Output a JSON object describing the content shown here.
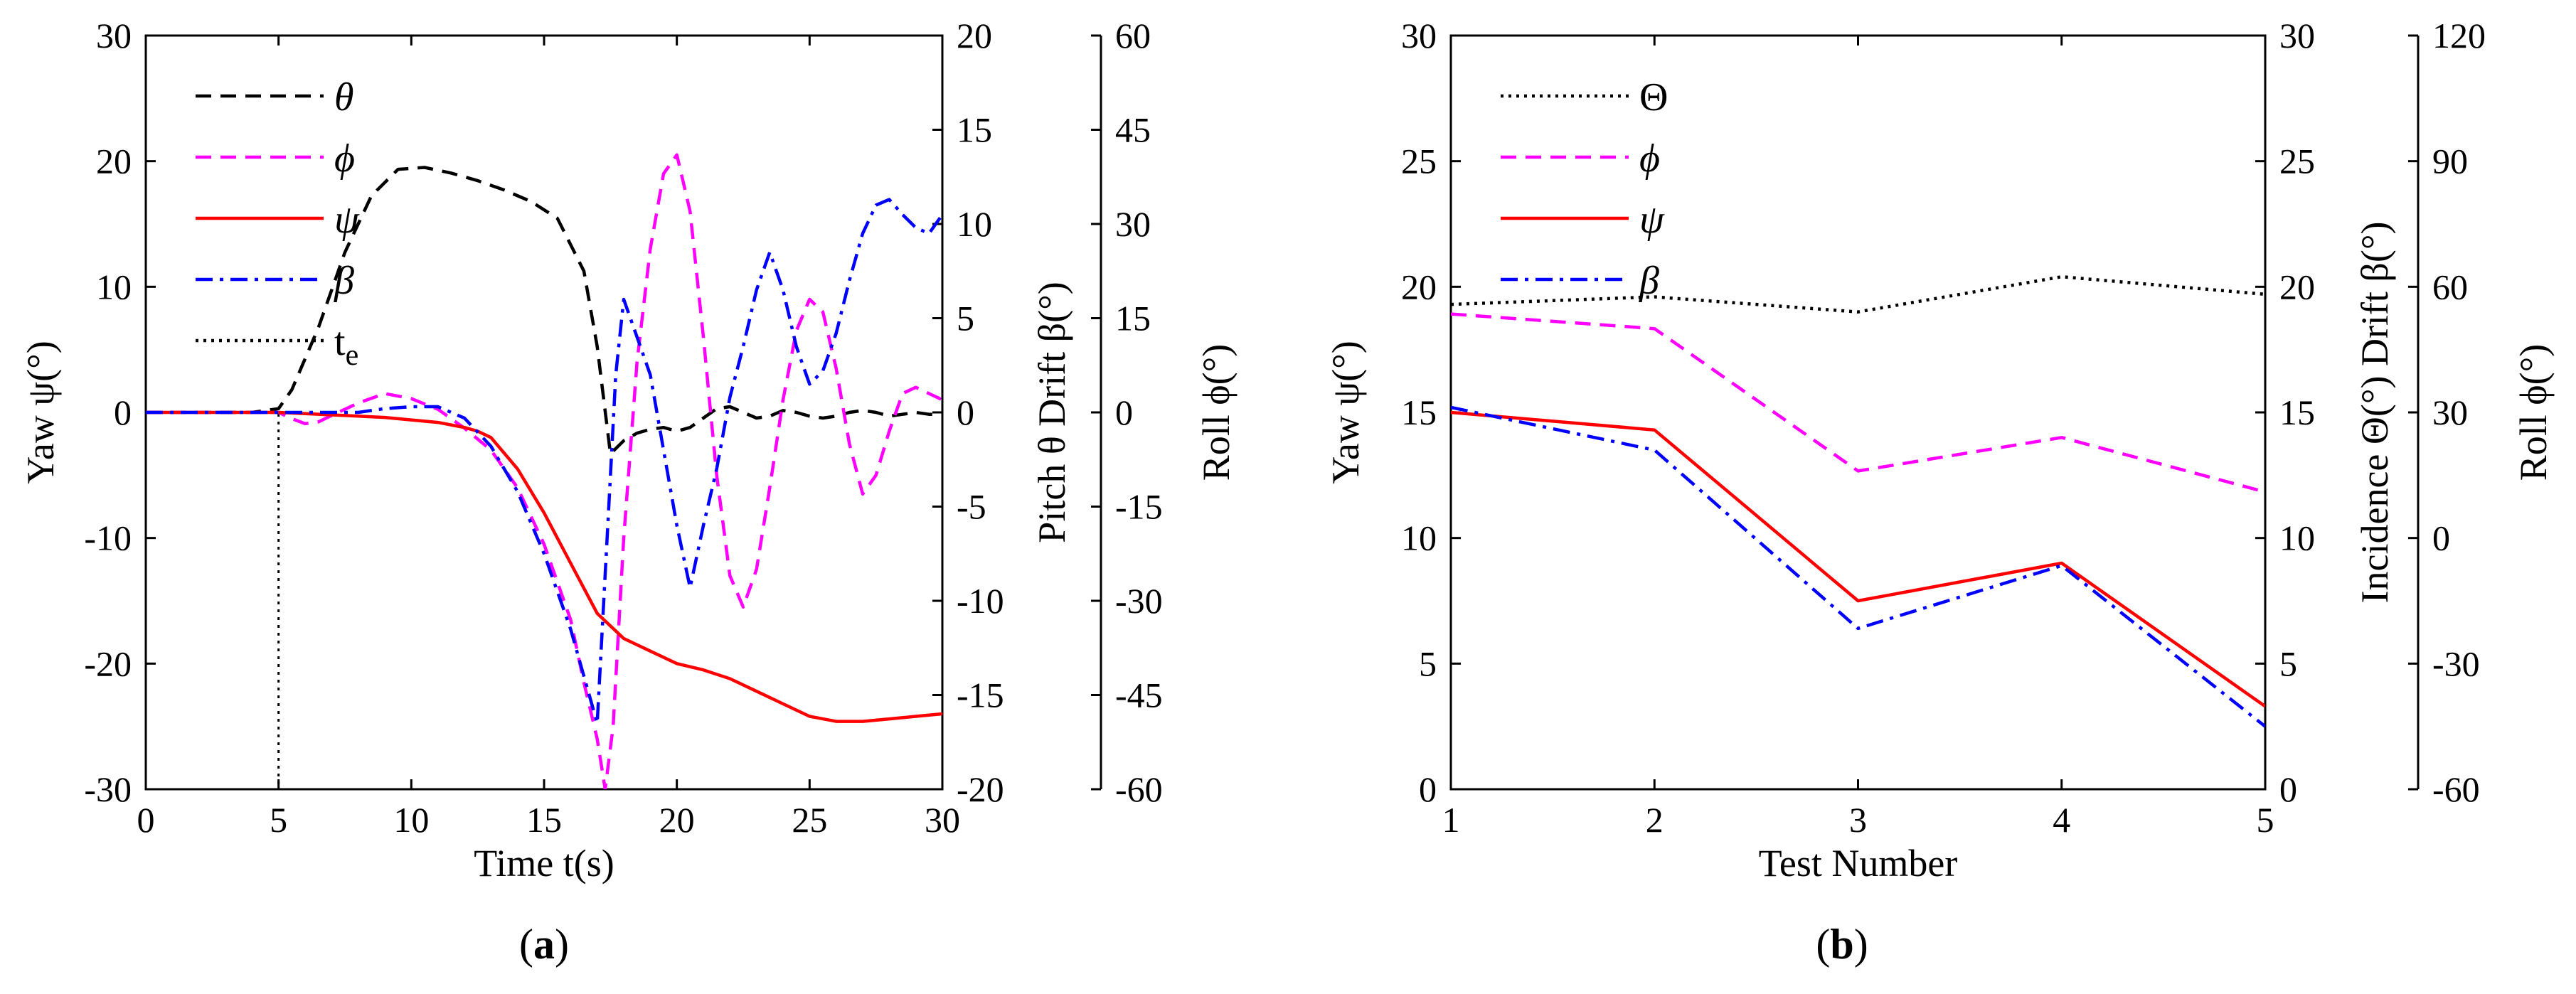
{
  "chart_data": [
    {
      "type": "line",
      "panel_label": {
        "open": "(",
        "letter": "a",
        "close": ")"
      },
      "xlabel": "Time t(s)",
      "xlim": [
        0,
        30
      ],
      "xticks": [
        "0",
        "5",
        "10",
        "15",
        "20",
        "25",
        "30"
      ],
      "axes": [
        {
          "id": "yaw",
          "label": "Yaw ψ(°)",
          "lim": [
            -30,
            30
          ],
          "ticks": [
            "-30",
            "-20",
            "-10",
            "0",
            "10",
            "20",
            "30"
          ]
        },
        {
          "id": "pitch",
          "label": "Pitch θ Drift β(°)",
          "lim": [
            -20,
            20
          ],
          "ticks": [
            "-20",
            "-15",
            "-10",
            "-5",
            "0",
            "5",
            "10",
            "15",
            "20"
          ]
        },
        {
          "id": "roll",
          "label": "Roll ϕ(°)",
          "lim": [
            -60,
            60
          ],
          "ticks": [
            "-60",
            "-45",
            "-30",
            "-15",
            "0",
            "15",
            "30",
            "45",
            "60"
          ]
        }
      ],
      "legend": [
        {
          "symbol": "θ",
          "color": "#000000",
          "dash": "dashed"
        },
        {
          "symbol": "ϕ",
          "color": "#ff00ff",
          "dash": "dashed"
        },
        {
          "symbol": "ψ",
          "color": "#ff0000",
          "dash": "solid"
        },
        {
          "symbol": "β",
          "color": "#0000ff",
          "dash": "dashdot"
        },
        {
          "symbol": "t",
          "subscript": "e",
          "color": "#000000",
          "dash": "dotted"
        }
      ],
      "vline": {
        "x": 5,
        "label": "te"
      },
      "series": [
        {
          "name": "θ",
          "axis": "pitch",
          "color": "#000000",
          "dash": "dashed",
          "x": [
            0,
            4,
            5,
            5.5,
            6.5,
            7.5,
            8.5,
            9.5,
            10.5,
            11.5,
            12.5,
            13.5,
            14.5,
            15.5,
            16.5,
            17,
            17.5,
            18,
            18.5,
            19,
            19.5,
            20,
            20.5,
            21,
            21.5,
            22,
            22.5,
            23,
            23.5,
            24,
            24.5,
            25,
            25.5,
            26,
            26.5,
            27,
            27.5,
            28,
            28.5,
            29,
            29.5,
            30
          ],
          "y": [
            0,
            0,
            0.2,
            1.2,
            4.5,
            8.5,
            11.5,
            12.9,
            13,
            12.7,
            12.3,
            11.8,
            11.2,
            10.3,
            7.5,
            3.5,
            -2.2,
            -1.5,
            -1.1,
            -0.9,
            -0.8,
            -1.0,
            -0.8,
            -0.3,
            0.2,
            0.3,
            0,
            -0.3,
            -0.2,
            0.1,
            0,
            -0.2,
            -0.3,
            -0.2,
            0,
            0.1,
            0,
            -0.2,
            -0.1,
            0,
            -0.1,
            -0.1
          ]
        },
        {
          "name": "ϕ",
          "axis": "roll",
          "color": "#ff00ff",
          "dash": "dashed",
          "x": [
            0,
            4,
            5,
            5.5,
            6,
            6.5,
            7,
            8,
            9,
            10,
            11,
            12,
            13,
            14,
            15,
            16,
            16.5,
            17,
            17.3,
            17.6,
            18,
            18.5,
            19,
            19.5,
            20,
            20.5,
            21,
            21.5,
            22,
            22.5,
            23,
            23.5,
            24,
            24.5,
            25,
            25.5,
            26,
            26.5,
            27,
            27.5,
            28,
            28.5,
            29,
            29.5,
            30
          ],
          "y": [
            0,
            0,
            0,
            -1,
            -1.8,
            -1.5,
            -0.5,
            1.5,
            3,
            2.2,
            0.5,
            -2.5,
            -6,
            -12,
            -21,
            -33,
            -43,
            -52,
            -60,
            -50,
            -20,
            8,
            26,
            38,
            41,
            32,
            12,
            -10,
            -26,
            -31,
            -25,
            -12,
            2,
            13,
            18,
            16,
            7,
            -5,
            -13,
            -10,
            -3,
            3,
            4,
            3,
            2
          ]
        },
        {
          "name": "ψ",
          "axis": "yaw",
          "color": "#ff0000",
          "dash": "solid",
          "x": [
            0,
            4,
            5,
            6,
            7,
            8,
            9,
            10,
            11,
            12,
            12.5,
            13,
            14,
            15,
            16,
            17,
            18,
            19,
            20,
            21,
            22,
            23,
            24,
            25,
            26,
            27,
            28,
            29,
            30
          ],
          "y": [
            0,
            0,
            0,
            -0.1,
            -0.2,
            -0.3,
            -0.4,
            -0.6,
            -0.8,
            -1.2,
            -1.5,
            -2.0,
            -4.5,
            -8,
            -12,
            -16,
            -18,
            -19,
            -20,
            -20.5,
            -21.2,
            -22.2,
            -23.2,
            -24.2,
            -24.6,
            -24.6,
            -24.4,
            -24.2,
            -24
          ]
        },
        {
          "name": "β",
          "axis": "pitch",
          "color": "#0000ff",
          "dash": "dashdot",
          "x": [
            0,
            5,
            6,
            7,
            8,
            9,
            10,
            11,
            12,
            13,
            14,
            15,
            16,
            16.7,
            17,
            17.4,
            17.7,
            18,
            18.5,
            19,
            19.5,
            20,
            20.5,
            21,
            21.5,
            22,
            22.5,
            23,
            23.5,
            24,
            24.5,
            25,
            25.5,
            26,
            26.5,
            27,
            27.5,
            28,
            28.5,
            29,
            29.5,
            30
          ],
          "y": [
            0,
            0,
            0,
            0,
            0,
            0.2,
            0.3,
            0.3,
            -0.3,
            -1.8,
            -4.2,
            -7.5,
            -11.5,
            -15,
            -16.5,
            -6,
            2,
            6,
            4,
            2,
            -2,
            -6,
            -9.3,
            -6,
            -3,
            0.8,
            3.5,
            6.5,
            8.5,
            6.5,
            3.5,
            1.5,
            2.2,
            4.2,
            7,
            9.5,
            11,
            11.3,
            10.5,
            9.8,
            9.5,
            10.5
          ]
        }
      ]
    },
    {
      "type": "line",
      "panel_label": {
        "open": "(",
        "letter": "b",
        "close": ")"
      },
      "xlabel": "Test Number",
      "xlim": [
        1,
        5
      ],
      "xticks": [
        "1",
        "2",
        "3",
        "4",
        "5"
      ],
      "axes": [
        {
          "id": "yaw",
          "label": "Yaw ψ(°)",
          "lim": [
            0,
            30
          ],
          "ticks": [
            "0",
            "5",
            "10",
            "15",
            "20",
            "25",
            "30"
          ]
        },
        {
          "id": "incidence",
          "label": "Incidence Θ(°) Drift β(°)",
          "lim": [
            0,
            30
          ],
          "ticks": [
            "0",
            "5",
            "10",
            "15",
            "20",
            "25",
            "30"
          ]
        },
        {
          "id": "roll",
          "label": "Roll ϕ(°)",
          "lim": [
            -60,
            120
          ],
          "ticks": [
            "-60",
            "-30",
            "0",
            "30",
            "60",
            "90",
            "120"
          ]
        }
      ],
      "legend": [
        {
          "symbol": "Θ",
          "color": "#000000",
          "dash": "dotted"
        },
        {
          "symbol": "ϕ",
          "color": "#ff00ff",
          "dash": "dashed"
        },
        {
          "symbol": "ψ",
          "color": "#ff0000",
          "dash": "solid"
        },
        {
          "symbol": "β",
          "color": "#0000ff",
          "dash": "dashdot"
        }
      ],
      "series": [
        {
          "name": "Θ",
          "axis": "incidence",
          "color": "#000000",
          "dash": "dotted",
          "x": [
            1,
            2,
            3,
            4,
            5
          ],
          "y": [
            19.3,
            19.6,
            19.0,
            20.4,
            19.7
          ]
        },
        {
          "name": "ϕ",
          "axis": "roll",
          "color": "#ff00ff",
          "dash": "dashed",
          "x": [
            1,
            2,
            3,
            4,
            5
          ],
          "y": [
            53.5,
            50,
            16,
            24,
            11
          ]
        },
        {
          "name": "ψ",
          "axis": "yaw",
          "color": "#ff0000",
          "dash": "solid",
          "x": [
            1,
            2,
            3,
            4,
            5
          ],
          "y": [
            15,
            14.3,
            7.5,
            9,
            3.3
          ]
        },
        {
          "name": "β",
          "axis": "incidence",
          "color": "#0000ff",
          "dash": "dashdot",
          "x": [
            1,
            2,
            3,
            4,
            5
          ],
          "y": [
            15.2,
            13.5,
            6.4,
            8.9,
            2.5
          ]
        }
      ]
    }
  ]
}
